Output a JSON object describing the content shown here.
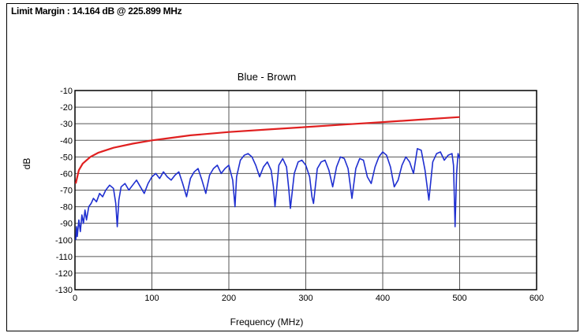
{
  "header": {
    "limit_margin_text": "Limit Margin : 14.164 dB @ 225.899 MHz"
  },
  "chart_data": {
    "type": "line",
    "title": "Blue - Brown",
    "xlabel": "Frequency (MHz)",
    "ylabel": "dB",
    "xlim": [
      0,
      600
    ],
    "ylim": [
      -130,
      -10
    ],
    "x_ticks": [
      0,
      100,
      200,
      300,
      400,
      500,
      600
    ],
    "y_ticks": [
      -10,
      -20,
      -30,
      -40,
      -50,
      -60,
      -70,
      -80,
      -90,
      -100,
      -110,
      -120,
      -130
    ],
    "grid": true,
    "series": [
      {
        "color": "#e02020",
        "x": [
          1,
          5,
          10,
          20,
          30,
          50,
          75,
          100,
          125,
          150,
          200,
          250,
          300,
          350,
          400,
          450,
          500
        ],
        "y": [
          -66,
          -58,
          -54,
          -50,
          -47.5,
          -44.5,
          -42,
          -40,
          -38.5,
          -37,
          -35,
          -33.5,
          -32,
          -30.5,
          -29,
          -27.5,
          -26
        ]
      },
      {
        "color": "#1f2fd0",
        "x": [
          1,
          2,
          3,
          5,
          7,
          9,
          11,
          13,
          15,
          18,
          21,
          24,
          28,
          32,
          36,
          40,
          45,
          50,
          53,
          55,
          57,
          60,
          65,
          70,
          75,
          80,
          85,
          90,
          95,
          100,
          105,
          110,
          115,
          120,
          125,
          130,
          135,
          140,
          145,
          150,
          155,
          160,
          165,
          170,
          175,
          180,
          185,
          190,
          195,
          200,
          205,
          208,
          210,
          215,
          220,
          225,
          230,
          235,
          240,
          245,
          250,
          255,
          258,
          260,
          265,
          270,
          275,
          278,
          280,
          285,
          290,
          295,
          300,
          305,
          308,
          310,
          315,
          320,
          325,
          330,
          335,
          340,
          345,
          350,
          355,
          360,
          365,
          370,
          375,
          380,
          385,
          390,
          395,
          400,
          405,
          410,
          415,
          420,
          425,
          430,
          435,
          440,
          445,
          450,
          455,
          460,
          465,
          470,
          475,
          480,
          485,
          490,
          492,
          494,
          496,
          498,
          500
        ],
        "y": [
          -100,
          -92,
          -98,
          -88,
          -95,
          -85,
          -90,
          -82,
          -88,
          -80,
          -78,
          -75,
          -77,
          -72,
          -74,
          -70,
          -67,
          -69,
          -78,
          -92,
          -76,
          -68,
          -66,
          -70,
          -67,
          -64,
          -68,
          -72,
          -66,
          -62,
          -60,
          -63,
          -59,
          -62,
          -64,
          -61,
          -59,
          -66,
          -74,
          -63,
          -59,
          -57,
          -64,
          -72,
          -61,
          -57,
          -55,
          -60,
          -57,
          -55,
          -64,
          -80,
          -62,
          -52,
          -49,
          -48,
          -50,
          -55,
          -62,
          -56,
          -53,
          -58,
          -68,
          -80,
          -55,
          -51,
          -56,
          -70,
          -81,
          -60,
          -53,
          -52,
          -55,
          -62,
          -74,
          -78,
          -57,
          -53,
          -52,
          -58,
          -68,
          -56,
          -50,
          -51,
          -57,
          -75,
          -57,
          -51,
          -52,
          -62,
          -66,
          -56,
          -50,
          -47,
          -49,
          -56,
          -68,
          -64,
          -55,
          -50,
          -53,
          -60,
          -45,
          -46,
          -58,
          -76,
          -53,
          -48,
          -47,
          -52,
          -49,
          -48,
          -55,
          -92,
          -60,
          -48,
          -51
        ]
      }
    ]
  }
}
